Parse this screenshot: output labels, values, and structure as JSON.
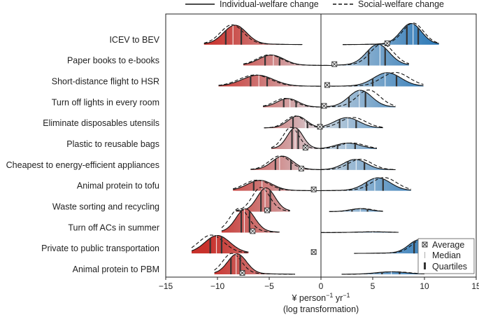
{
  "chart_data": {
    "type": "ridgeline",
    "xlabel_line1": "¥ person",
    "xlabel_sup1": "−1",
    "xlabel_mid": " yr",
    "xlabel_sup2": "−1",
    "xlabel_line2": "(log transformation)",
    "xlim": [
      -15,
      15
    ],
    "xticks": [
      -15,
      -10,
      -5,
      0,
      5,
      10,
      15
    ],
    "xtick_labels": [
      "−15",
      "−10",
      "−5",
      "0",
      "5",
      "10",
      "15"
    ],
    "top_legend": [
      {
        "label": "Individual-welfare change",
        "style": "solid"
      },
      {
        "label": "Social-welfare change",
        "style": "dashed"
      }
    ],
    "inset_legend": [
      {
        "label": "Average",
        "marker": "x-square"
      },
      {
        "label": "Median",
        "marker": "thin-bar"
      },
      {
        "label": "Quartiles",
        "marker": "thick-bar"
      }
    ],
    "colors": {
      "negative_strong": "#c8312b",
      "negative_light": "#f6c9b3",
      "positive_strong": "#2f7ab8",
      "positive_light": "#c9dfee",
      "neutral": "#d7dde3"
    },
    "rows": [
      {
        "category": "ICEV to BEV",
        "neg": {
          "mu": -8.3,
          "sigma": 1.1,
          "amp": 0.78,
          "range": [
            -11.3,
            -1.8
          ],
          "median": -8.5,
          "q1": -9.2,
          "q3": -7.7,
          "socialShift": 0.3
        },
        "pos": {
          "mu": 8.7,
          "sigma": 1.0,
          "amp": 0.85,
          "range": [
            2.1,
            11.4
          ],
          "median": 8.9,
          "q1": 8.3,
          "q3": 9.4,
          "socialShift": 0.2
        },
        "average": 6.4
      },
      {
        "category": "Paper books to e-books",
        "neg": {
          "mu": -4.8,
          "sigma": 1.2,
          "amp": 0.42,
          "range": [
            -7.5,
            1.0
          ],
          "median": -4.6,
          "q1": -5.4,
          "q3": -4.0,
          "socialShift": 0.2
        },
        "pos": {
          "mu": 5.5,
          "sigma": 1.1,
          "amp": 0.85,
          "range": [
            1.0,
            8.5
          ],
          "median": 5.7,
          "q1": 4.6,
          "q3": 6.2,
          "socialShift": 0.4
        },
        "average": 1.3
      },
      {
        "category": "Short-distance flight to HSR",
        "neg": {
          "mu": -6.1,
          "sigma": 1.5,
          "amp": 0.45,
          "range": [
            -9.9,
            0.0
          ],
          "median": -6.0,
          "q1": -6.8,
          "q3": -5.2,
          "socialShift": 0.3
        },
        "pos": {
          "mu": 6.4,
          "sigma": 1.3,
          "amp": 0.55,
          "range": [
            0.5,
            9.9
          ],
          "median": 6.2,
          "q1": 5.0,
          "q3": 7.3,
          "socialShift": 0.8
        },
        "average": 0.6
      },
      {
        "category": "Turn off lights in every room",
        "neg": {
          "mu": -3.2,
          "sigma": 1.0,
          "amp": 0.35,
          "range": [
            -5.6,
            0.0
          ],
          "median": -3.0,
          "q1": -3.6,
          "q3": -2.4,
          "socialShift": 0.3
        },
        "pos": {
          "mu": 3.8,
          "sigma": 1.1,
          "amp": 0.68,
          "range": [
            0.0,
            7.2
          ],
          "median": 3.7,
          "q1": 2.7,
          "q3": 4.3,
          "socialShift": 0.8
        },
        "average": 0.3
      },
      {
        "category": "Eliminate disposables utensils",
        "neg": {
          "mu": -2.3,
          "sigma": 0.9,
          "amp": 0.48,
          "range": [
            -5.5,
            0.0
          ],
          "median": -1.5,
          "q1": -2.7,
          "q3": -1.3,
          "socialShift": 0.2
        },
        "pos": {
          "mu": 2.5,
          "sigma": 1.2,
          "amp": 0.42,
          "range": [
            0.0,
            6.0
          ],
          "median": 2.6,
          "q1": 1.8,
          "q3": 3.4,
          "socialShift": 0.6
        },
        "average": -0.1
      },
      {
        "category": "Plastic to reusable bags",
        "neg": {
          "mu": -2.5,
          "sigma": 0.75,
          "amp": 0.85,
          "range": [
            -4.8,
            0.5
          ],
          "median": -2.5,
          "q1": -2.8,
          "q3": -2.2,
          "socialShift": 0.4
        },
        "pos": {
          "mu": 2.6,
          "sigma": 1.2,
          "amp": 0.24,
          "range": [
            0.0,
            5.4
          ],
          "median": 2.4,
          "q1": 1.6,
          "q3": 3.3,
          "socialShift": 0.4
        },
        "average": -1.5
      },
      {
        "category": "Cheapest to energy-efficient appliances",
        "neg": {
          "mu": -3.7,
          "sigma": 1.0,
          "amp": 0.55,
          "range": [
            -6.8,
            0.0
          ],
          "median": -4.0,
          "q1": -4.4,
          "q3": -2.9,
          "socialShift": 0.3
        },
        "pos": {
          "mu": 3.3,
          "sigma": 1.1,
          "amp": 0.42,
          "range": [
            0.0,
            7.2
          ],
          "median": 3.4,
          "q1": 2.6,
          "q3": 4.2,
          "socialShift": 0.5
        },
        "average": -1.9
      },
      {
        "category": "Animal protein to tofu",
        "neg": {
          "mu": -5.9,
          "sigma": 1.2,
          "amp": 0.42,
          "range": [
            -8.5,
            0.0
          ],
          "median": -5.7,
          "q1": -6.5,
          "q3": -4.0,
          "socialShift": 0.3
        },
        "pos": {
          "mu": 5.5,
          "sigma": 1.2,
          "amp": 0.52,
          "range": [
            0.0,
            8.7
          ],
          "median": 5.2,
          "q1": 4.4,
          "q3": 6.0,
          "socialShift": 0.6
        },
        "average": -0.7
      },
      {
        "category": "Waste sorting and recycling",
        "neg": {
          "mu": -5.3,
          "sigma": 0.85,
          "amp": 0.95,
          "range": [
            -8.2,
            -3.0
          ],
          "median": -5.4,
          "q1": -5.8,
          "q3": -4.9,
          "socialShift": 0.5
        },
        "pos": {
          "mu": 3.8,
          "sigma": 1.0,
          "amp": 0.12,
          "range": [
            0.8,
            6.0
          ],
          "median": 3.8,
          "q1": 3.0,
          "q3": 4.5,
          "socialShift": 0.2
        },
        "average": -5.2
      },
      {
        "category": "Turn off ACs in summer",
        "neg": {
          "mu": -7.3,
          "sigma": 0.9,
          "amp": 0.95,
          "range": [
            -9.6,
            -4.0
          ],
          "median": -7.4,
          "q1": -7.7,
          "q3": -6.9,
          "socialShift": 0.6
        },
        "pos": {
          "mu": 5.0,
          "sigma": 1.5,
          "amp": 0.03,
          "range": [
            0.0,
            7.5
          ],
          "median": 5.0,
          "q1": 4.0,
          "q3": 6.0,
          "socialShift": 0.2
        },
        "average": -6.6
      },
      {
        "category": "Private to public transportation",
        "neg": {
          "mu": -10.0,
          "sigma": 1.2,
          "amp": 0.72,
          "range": [
            -12.5,
            -7.0
          ],
          "median": -10.1,
          "q1": -10.7,
          "q3": -9.6,
          "socialShift": 0.6
        },
        "pos": {
          "mu": 9.5,
          "sigma": 1.0,
          "amp": 0.55,
          "range": [
            3.2,
            12.3
          ],
          "median": 9.4,
          "q1": 9.0,
          "q3": 9.9,
          "socialShift": 0.3
        },
        "average": -0.7
      },
      {
        "category": "Animal protein to PBM",
        "neg": {
          "mu": -8.1,
          "sigma": 0.9,
          "amp": 0.82,
          "range": [
            -10.3,
            -2.5
          ],
          "median": -8.2,
          "q1": -8.7,
          "q3": -7.8,
          "socialShift": 0.5
        },
        "pos": {
          "mu": 6.8,
          "sigma": 1.5,
          "amp": 0.1,
          "range": [
            2.0,
            10.0
          ],
          "median": 6.8,
          "q1": 5.9,
          "q3": 7.6,
          "socialShift": 0.3
        },
        "average": -7.6
      }
    ]
  }
}
